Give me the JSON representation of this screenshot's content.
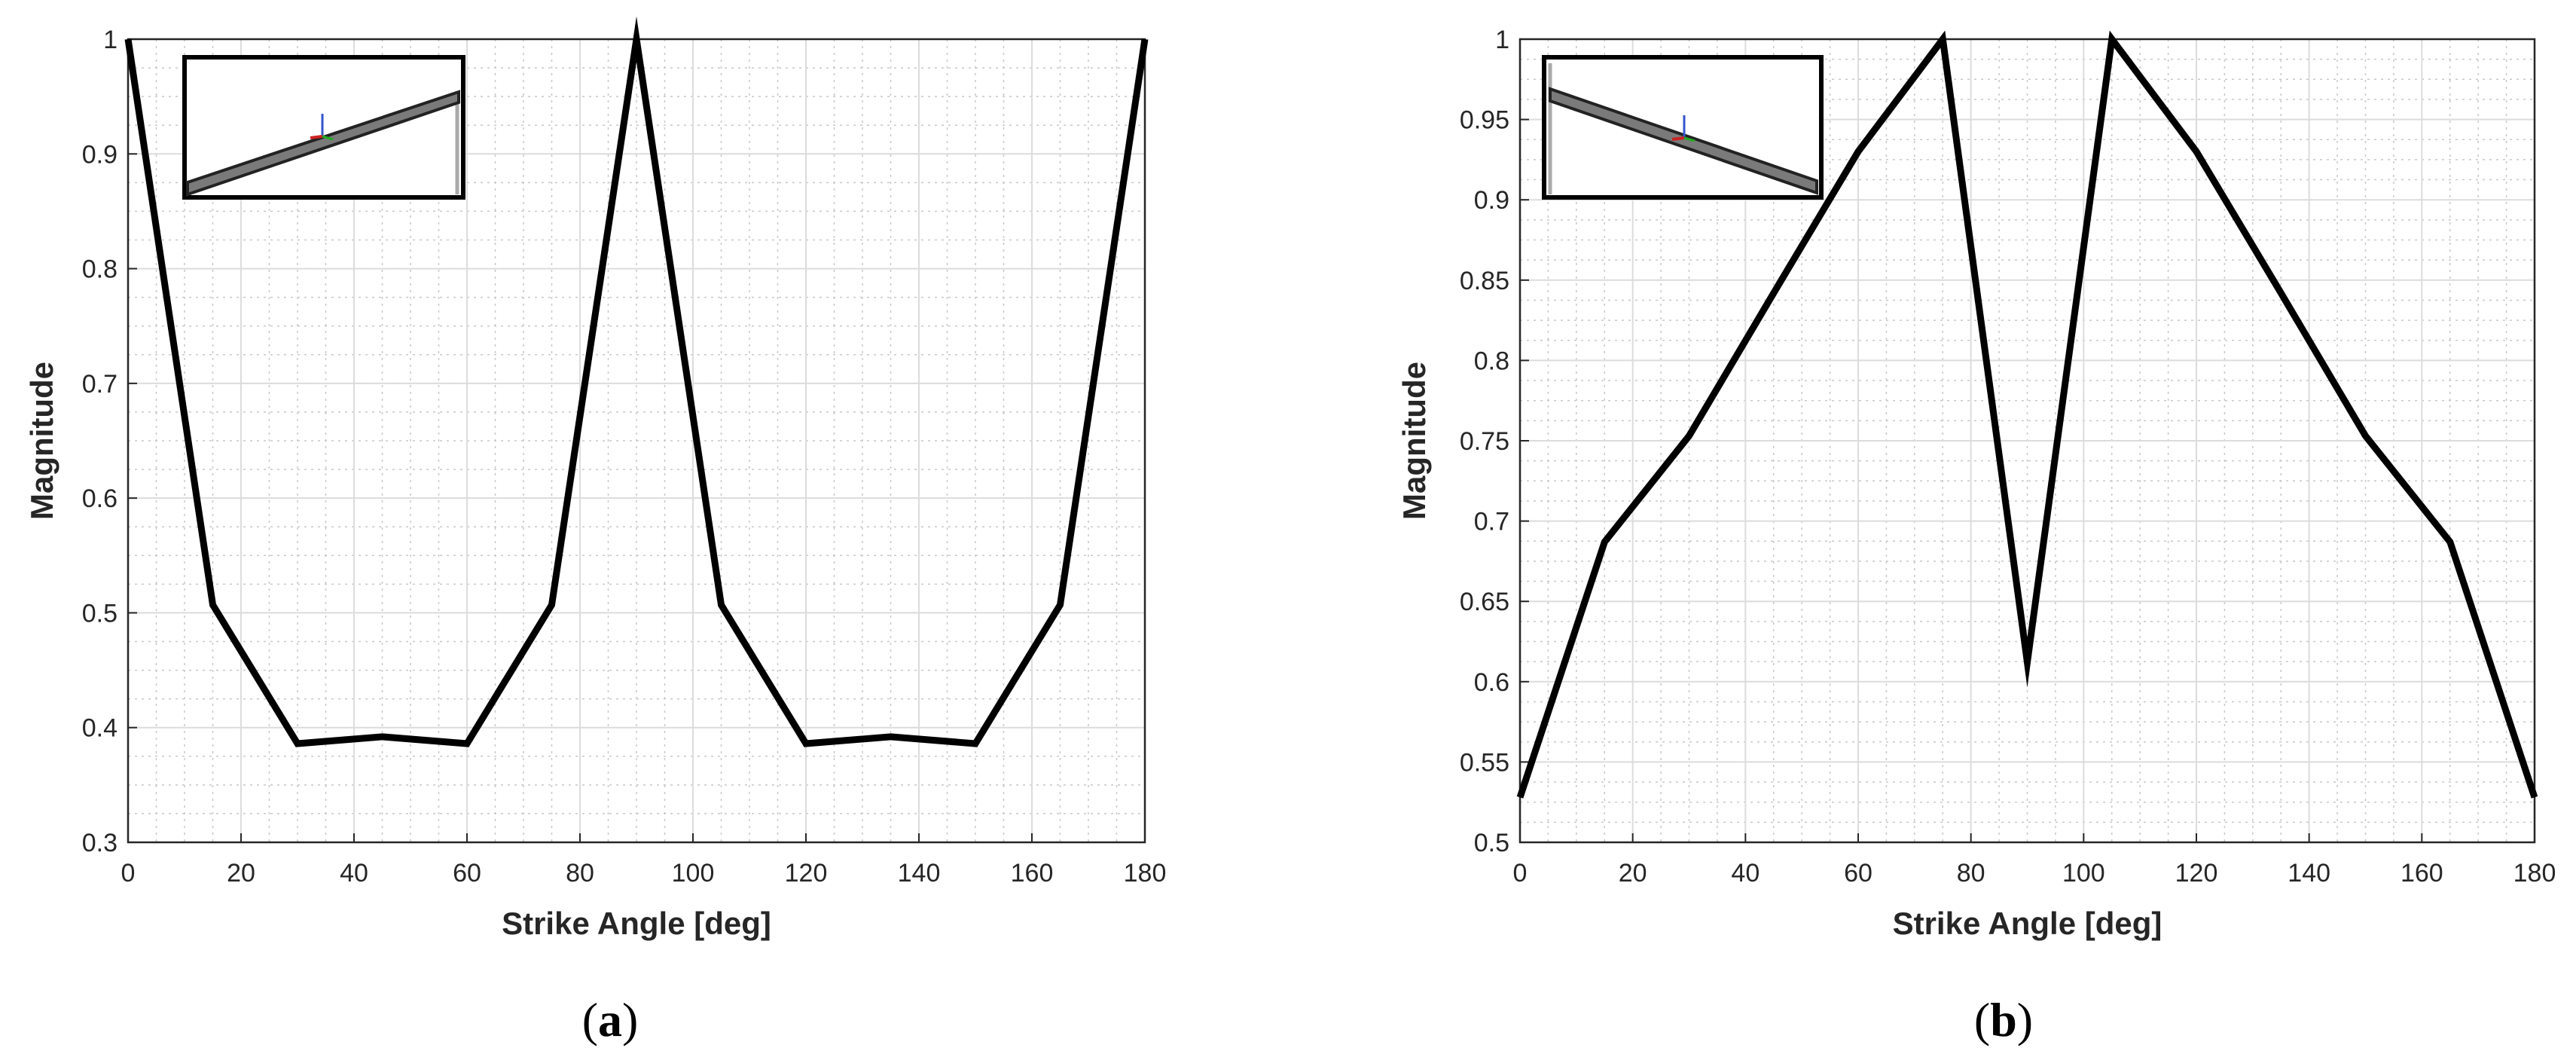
{
  "chart_data": [
    {
      "type": "line",
      "panel_label": "a",
      "xlabel": "Strike Angle [deg]",
      "ylabel": "Magnitude",
      "xlim": [
        0,
        180
      ],
      "ylim": [
        0.3,
        1
      ],
      "xticks": [
        0,
        20,
        40,
        60,
        80,
        100,
        120,
        140,
        160,
        180
      ],
      "yticks": [
        0.3,
        0.4,
        0.5,
        0.6,
        0.7,
        0.8,
        0.9,
        1
      ],
      "ytick_labels": [
        "0.3",
        "0.4",
        "0.5",
        "0.6",
        "0.7",
        "0.8",
        "0.9",
        "1"
      ],
      "grid": true,
      "minor_grid": true,
      "inset": "beam-rising",
      "series": [
        {
          "color": "#000000",
          "x": [
            0,
            15,
            30,
            45,
            60,
            75,
            90,
            105,
            120,
            135,
            150,
            165,
            180
          ],
          "y": [
            1.0,
            0.507,
            0.386,
            0.392,
            0.386,
            0.507,
            1.0,
            0.507,
            0.386,
            0.392,
            0.386,
            0.507,
            1.0
          ]
        }
      ]
    },
    {
      "type": "line",
      "panel_label": "b",
      "xlabel": "Strike Angle [deg]",
      "ylabel": "Magnitude",
      "xlim": [
        0,
        180
      ],
      "ylim": [
        0.5,
        1
      ],
      "xticks": [
        0,
        20,
        40,
        60,
        80,
        100,
        120,
        140,
        160,
        180
      ],
      "yticks": [
        0.5,
        0.55,
        0.6,
        0.65,
        0.7,
        0.75,
        0.8,
        0.85,
        0.9,
        0.95,
        1
      ],
      "ytick_labels": [
        "0.5",
        "0.55",
        "0.6",
        "0.65",
        "0.7",
        "0.75",
        "0.8",
        "0.85",
        "0.9",
        "0.95",
        "1"
      ],
      "grid": true,
      "minor_grid": true,
      "inset": "beam-falling",
      "series": [
        {
          "color": "#000000",
          "x": [
            0,
            15,
            30,
            45,
            60,
            75,
            90,
            105,
            120,
            135,
            150,
            165,
            180
          ],
          "y": [
            0.528,
            0.687,
            0.753,
            0.842,
            0.93,
            1.0,
            0.612,
            1.0,
            0.93,
            0.842,
            0.753,
            0.687,
            0.528
          ]
        }
      ]
    }
  ]
}
